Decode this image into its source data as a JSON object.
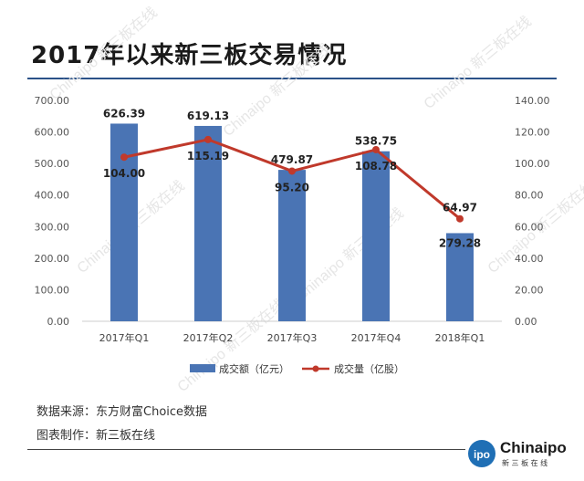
{
  "title": "2017年以来新三板交易情况",
  "source_line": "数据来源：东方财富Choice数据",
  "made_by_line": "图表制作：新三板在线",
  "watermark_text": "Chinaipo 新三板在线",
  "logo": {
    "text": "Chinaipo",
    "sub": "新 三 板 在 线",
    "badge": "ipo"
  },
  "colors": {
    "bar": "#4a74b4",
    "line": "#c0392b",
    "rule": "#2b5288"
  },
  "chart_data": {
    "type": "bar",
    "categories": [
      "2017年Q1",
      "2017年Q2",
      "2017年Q3",
      "2017年Q4",
      "2018年Q1"
    ],
    "series": [
      {
        "name": "成交额（亿元）",
        "type": "bar",
        "axis": "left",
        "values": [
          626.39,
          619.13,
          479.87,
          538.75,
          279.28
        ]
      },
      {
        "name": "成交量（亿股）",
        "type": "line",
        "axis": "right",
        "values": [
          104.0,
          115.19,
          95.2,
          108.78,
          64.97
        ]
      }
    ],
    "y_left": {
      "min": 0,
      "max": 700,
      "ticks": [
        "0.00",
        "100.00",
        "200.00",
        "300.00",
        "400.00",
        "500.00",
        "600.00",
        "700.00"
      ]
    },
    "y_right": {
      "min": 0,
      "max": 140,
      "ticks": [
        "0.00",
        "20.00",
        "40.00",
        "60.00",
        "80.00",
        "100.00",
        "120.00",
        "140.00"
      ]
    },
    "legend_position": "bottom",
    "grid": false
  }
}
